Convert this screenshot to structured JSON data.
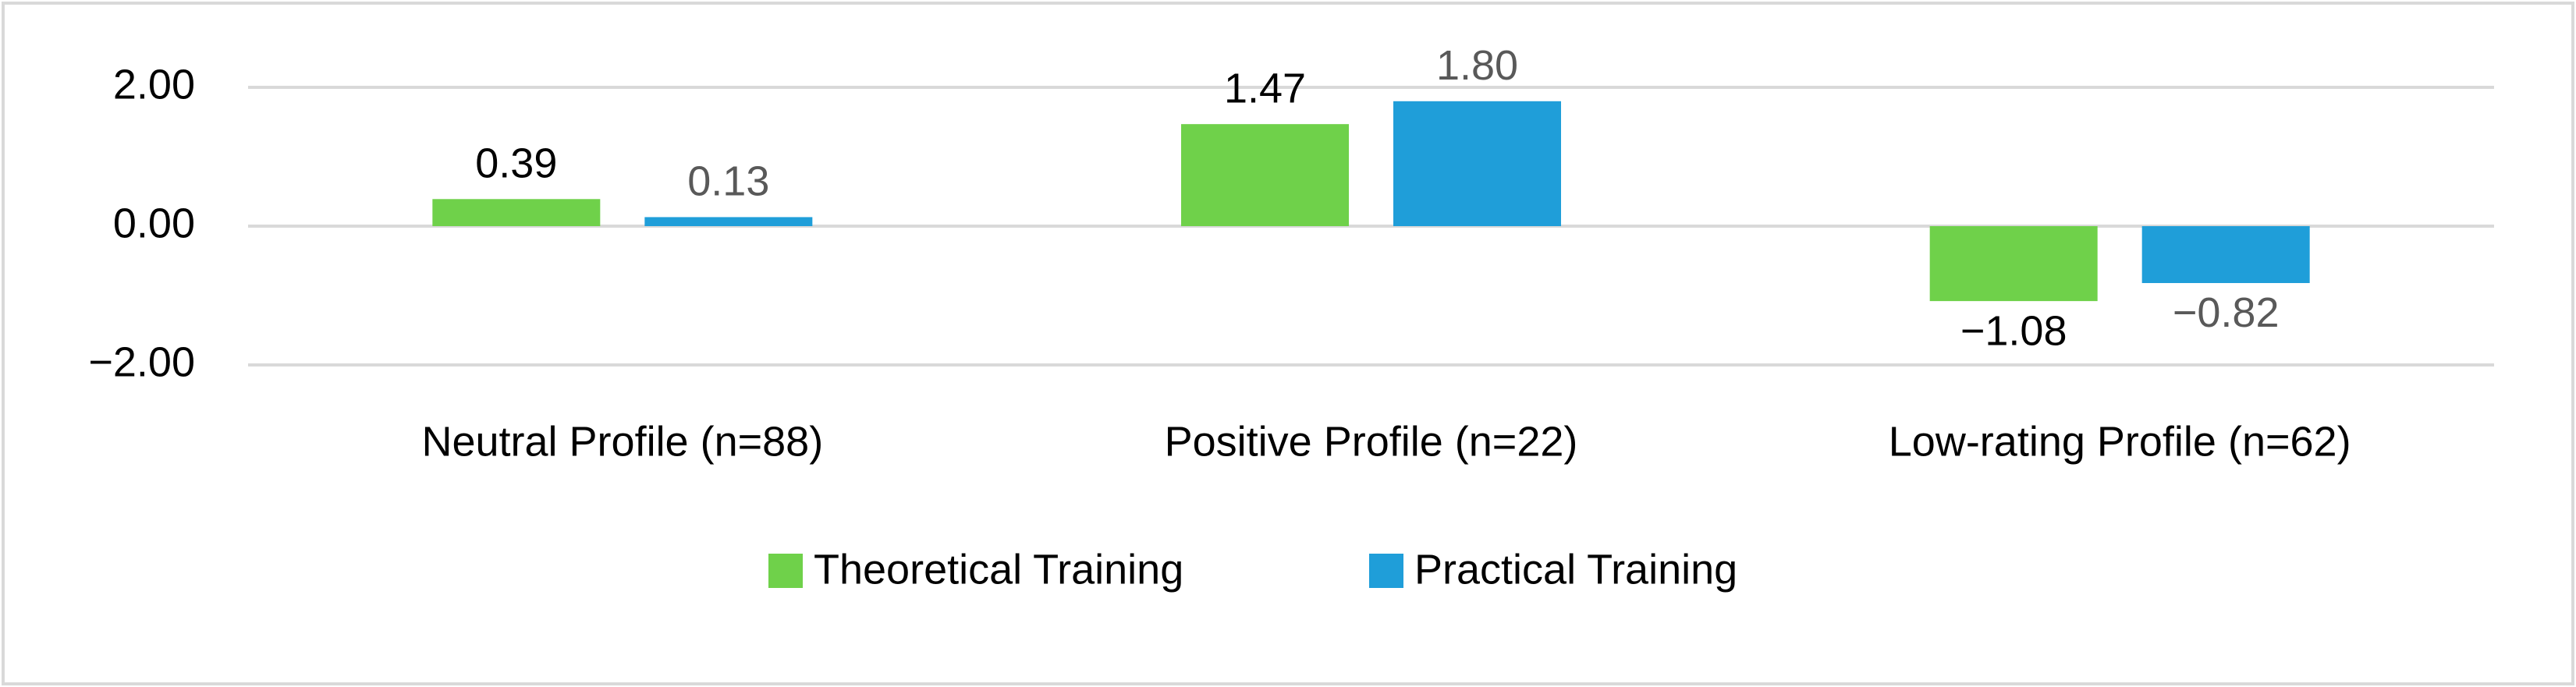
{
  "chart_data": {
    "type": "bar",
    "categories": [
      "Neutral Profile (n=88)",
      "Positive Profile (n=22)",
      "Low-rating Profile (n=62)"
    ],
    "series": [
      {
        "name": "Theoretical Training",
        "color": "#6fd14a",
        "values": [
          0.39,
          1.47,
          -1.08
        ],
        "value_labels": [
          "0.39",
          "1.47",
          "−1.08"
        ]
      },
      {
        "name": "Practical Training",
        "color": "#1f9ed9",
        "values": [
          0.13,
          1.8,
          -0.82
        ],
        "value_labels": [
          "0.13",
          "1.80",
          "−0.82"
        ]
      }
    ],
    "ylim": [
      -2,
      2
    ],
    "yticks": [
      {
        "value": 2,
        "label": "2.00"
      },
      {
        "value": 0,
        "label": "0.00"
      },
      {
        "value": -2,
        "label": "−2.00"
      }
    ],
    "grid": true,
    "legend": "bottom"
  }
}
